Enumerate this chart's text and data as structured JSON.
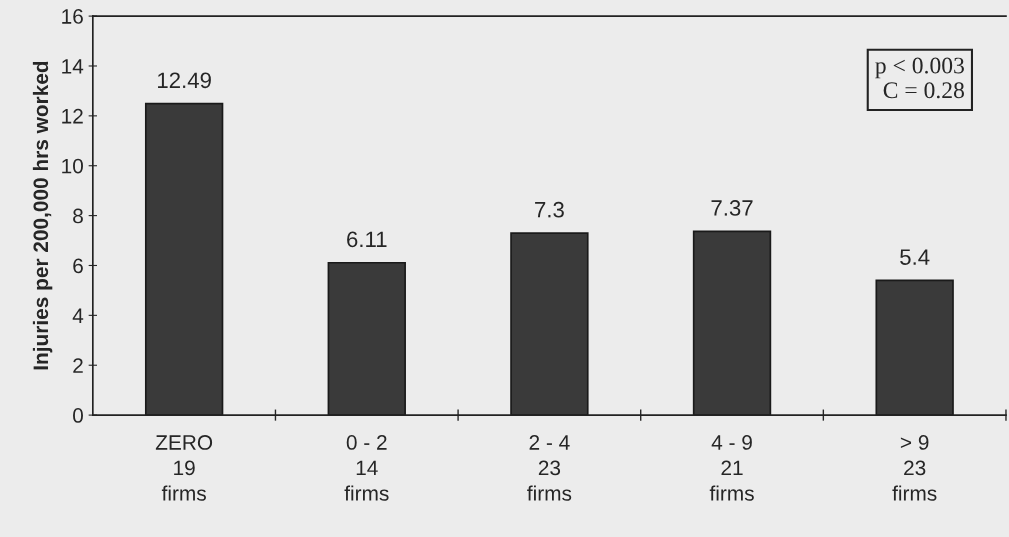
{
  "chart_data": {
    "type": "bar",
    "ylabel": "Injuries per 200,000 hrs worked",
    "categories": [
      "ZERO\n19\nfirms",
      "0 - 2\n14\nfirms",
      "2 - 4\n23\nfirms",
      "4 - 9\n21\nfirms",
      "> 9\n23\nfirms"
    ],
    "values": [
      12.49,
      6.11,
      7.3,
      7.37,
      5.4
    ],
    "color": "#3a3a3a",
    "ylim": [
      0,
      16
    ],
    "yticks": [
      0,
      2,
      4,
      6,
      8,
      10,
      12,
      14,
      16
    ],
    "data_labels": true,
    "grid": false,
    "annotations": [
      "p < 0.003\nC = 0.28"
    ]
  }
}
